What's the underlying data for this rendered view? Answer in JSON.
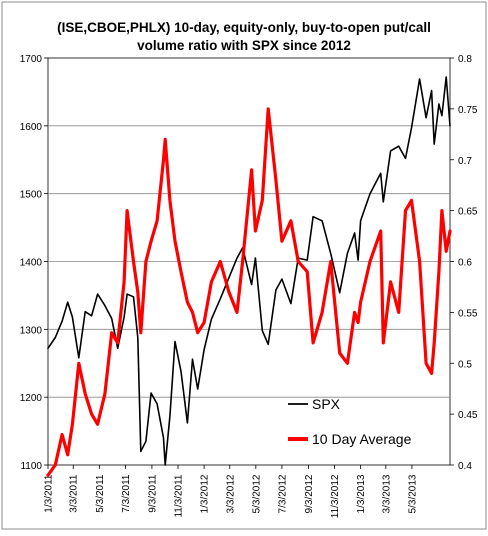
{
  "chart_data": {
    "type": "line",
    "title_lines": [
      "(ISE,CBOE,PHLX) 10-day, equity-only, buy-to-open put/call",
      "volume ratio with SPX since 2012"
    ],
    "y_left": {
      "min": 1100,
      "max": 1700,
      "ticks": [
        "1100",
        "1200",
        "1300",
        "1400",
        "1500",
        "1600",
        "1700"
      ]
    },
    "y_right": {
      "min": 0.4,
      "max": 0.8,
      "ticks": [
        "0.4",
        "0.45",
        "0.5",
        "0.55",
        "0.6",
        "0.65",
        "0.7",
        "0.75",
        "0.8"
      ]
    },
    "x_range": [
      "2011-01-03",
      "2013-07-31"
    ],
    "x_ticks": [
      {
        "label": "1/3/2011",
        "date": "2011-01-03"
      },
      {
        "label": "3/3/2011",
        "date": "2011-03-03"
      },
      {
        "label": "5/3/2011",
        "date": "2011-05-03"
      },
      {
        "label": "7/3/2011",
        "date": "2011-07-03"
      },
      {
        "label": "9/3/2011",
        "date": "2011-09-03"
      },
      {
        "label": "11/3/2011",
        "date": "2011-11-03"
      },
      {
        "label": "1/3/2012",
        "date": "2012-01-03"
      },
      {
        "label": "3/3/2012",
        "date": "2012-03-03"
      },
      {
        "label": "5/3/2012",
        "date": "2012-05-03"
      },
      {
        "label": "7/3/2012",
        "date": "2012-07-03"
      },
      {
        "label": "9/3/2012",
        "date": "2012-09-03"
      },
      {
        "label": "11/3/2012",
        "date": "2012-11-03"
      },
      {
        "label": "1/3/2013",
        "date": "2013-01-03"
      },
      {
        "label": "3/3/2013",
        "date": "2013-03-03"
      },
      {
        "label": "5/3/2013",
        "date": "2013-05-03"
      }
    ],
    "grid": "horizontal",
    "legend_position": "bottom-right-inside",
    "series": [
      {
        "name": "SPX",
        "axis": "left",
        "color": "#000000",
        "points": [
          [
            "2011-01-03",
            1272
          ],
          [
            "2011-01-20",
            1288
          ],
          [
            "2011-02-05",
            1312
          ],
          [
            "2011-02-18",
            1340
          ],
          [
            "2011-03-01",
            1318
          ],
          [
            "2011-03-16",
            1258
          ],
          [
            "2011-03-31",
            1326
          ],
          [
            "2011-04-15",
            1320
          ],
          [
            "2011-04-29",
            1352
          ],
          [
            "2011-05-16",
            1335
          ],
          [
            "2011-06-01",
            1316
          ],
          [
            "2011-06-15",
            1272
          ],
          [
            "2011-06-30",
            1318
          ],
          [
            "2011-07-07",
            1352
          ],
          [
            "2011-07-22",
            1348
          ],
          [
            "2011-08-01",
            1288
          ],
          [
            "2011-08-08",
            1120
          ],
          [
            "2011-08-20",
            1135
          ],
          [
            "2011-09-01",
            1206
          ],
          [
            "2011-09-15",
            1190
          ],
          [
            "2011-09-30",
            1140
          ],
          [
            "2011-10-04",
            1100
          ],
          [
            "2011-10-15",
            1172
          ],
          [
            "2011-10-27",
            1282
          ],
          [
            "2011-11-10",
            1238
          ],
          [
            "2011-11-25",
            1162
          ],
          [
            "2011-12-07",
            1256
          ],
          [
            "2011-12-19",
            1212
          ],
          [
            "2012-01-03",
            1270
          ],
          [
            "2012-01-20",
            1315
          ],
          [
            "2012-02-10",
            1345
          ],
          [
            "2012-03-01",
            1376
          ],
          [
            "2012-03-20",
            1405
          ],
          [
            "2012-04-02",
            1420
          ],
          [
            "2012-04-23",
            1366
          ],
          [
            "2012-05-02",
            1405
          ],
          [
            "2012-05-18",
            1298
          ],
          [
            "2012-06-01",
            1278
          ],
          [
            "2012-06-19",
            1358
          ],
          [
            "2012-07-03",
            1374
          ],
          [
            "2012-07-24",
            1338
          ],
          [
            "2012-08-10",
            1405
          ],
          [
            "2012-08-31",
            1402
          ],
          [
            "2012-09-14",
            1466
          ],
          [
            "2012-10-05",
            1460
          ],
          [
            "2012-10-25",
            1412
          ],
          [
            "2012-11-15",
            1354
          ],
          [
            "2012-12-03",
            1412
          ],
          [
            "2012-12-20",
            1442
          ],
          [
            "2012-12-28",
            1402
          ],
          [
            "2013-01-03",
            1460
          ],
          [
            "2013-01-25",
            1500
          ],
          [
            "2013-02-19",
            1530
          ],
          [
            "2013-02-25",
            1488
          ],
          [
            "2013-03-14",
            1563
          ],
          [
            "2013-04-02",
            1570
          ],
          [
            "2013-04-18",
            1552
          ],
          [
            "2013-05-02",
            1597
          ],
          [
            "2013-05-21",
            1669
          ],
          [
            "2013-06-05",
            1612
          ],
          [
            "2013-06-18",
            1652
          ],
          [
            "2013-06-24",
            1573
          ],
          [
            "2013-07-05",
            1632
          ],
          [
            "2013-07-12",
            1615
          ],
          [
            "2013-07-22",
            1672
          ],
          [
            "2013-07-31",
            1600
          ]
        ]
      },
      {
        "name": "10 Day Average",
        "axis": "right",
        "color": "#ff0000",
        "points": [
          [
            "2011-01-03",
            0.39
          ],
          [
            "2011-01-20",
            0.4
          ],
          [
            "2011-02-05",
            0.43
          ],
          [
            "2011-02-18",
            0.41
          ],
          [
            "2011-03-01",
            0.44
          ],
          [
            "2011-03-16",
            0.5
          ],
          [
            "2011-03-31",
            0.47
          ],
          [
            "2011-04-15",
            0.45
          ],
          [
            "2011-04-29",
            0.44
          ],
          [
            "2011-05-16",
            0.47
          ],
          [
            "2011-06-01",
            0.53
          ],
          [
            "2011-06-15",
            0.52
          ],
          [
            "2011-06-30",
            0.58
          ],
          [
            "2011-07-07",
            0.65
          ],
          [
            "2011-07-22",
            0.6
          ],
          [
            "2011-08-01",
            0.57
          ],
          [
            "2011-08-08",
            0.53
          ],
          [
            "2011-08-20",
            0.6
          ],
          [
            "2011-09-01",
            0.62
          ],
          [
            "2011-09-15",
            0.64
          ],
          [
            "2011-09-30",
            0.7
          ],
          [
            "2011-10-04",
            0.72
          ],
          [
            "2011-10-15",
            0.66
          ],
          [
            "2011-10-27",
            0.62
          ],
          [
            "2011-11-10",
            0.59
          ],
          [
            "2011-11-25",
            0.56
          ],
          [
            "2011-12-07",
            0.55
          ],
          [
            "2011-12-19",
            0.53
          ],
          [
            "2012-01-03",
            0.54
          ],
          [
            "2012-01-20",
            0.58
          ],
          [
            "2012-02-10",
            0.6
          ],
          [
            "2012-03-01",
            0.57
          ],
          [
            "2012-03-20",
            0.55
          ],
          [
            "2012-04-02",
            0.6
          ],
          [
            "2012-04-23",
            0.69
          ],
          [
            "2012-05-02",
            0.63
          ],
          [
            "2012-05-18",
            0.66
          ],
          [
            "2012-06-01",
            0.75
          ],
          [
            "2012-06-19",
            0.68
          ],
          [
            "2012-07-03",
            0.62
          ],
          [
            "2012-07-24",
            0.64
          ],
          [
            "2012-08-10",
            0.6
          ],
          [
            "2012-08-31",
            0.59
          ],
          [
            "2012-09-14",
            0.52
          ],
          [
            "2012-10-05",
            0.55
          ],
          [
            "2012-10-25",
            0.6
          ],
          [
            "2012-11-15",
            0.51
          ],
          [
            "2012-12-03",
            0.5
          ],
          [
            "2012-12-20",
            0.55
          ],
          [
            "2012-12-28",
            0.54
          ],
          [
            "2013-01-03",
            0.56
          ],
          [
            "2013-01-25",
            0.6
          ],
          [
            "2013-02-19",
            0.63
          ],
          [
            "2013-02-25",
            0.52
          ],
          [
            "2013-03-14",
            0.58
          ],
          [
            "2013-04-02",
            0.55
          ],
          [
            "2013-04-18",
            0.65
          ],
          [
            "2013-05-02",
            0.66
          ],
          [
            "2013-05-21",
            0.6
          ],
          [
            "2013-06-05",
            0.5
          ],
          [
            "2013-06-18",
            0.49
          ],
          [
            "2013-06-24",
            0.52
          ],
          [
            "2013-07-05",
            0.59
          ],
          [
            "2013-07-12",
            0.65
          ],
          [
            "2013-07-22",
            0.61
          ],
          [
            "2013-07-31",
            0.63
          ]
        ]
      }
    ]
  }
}
